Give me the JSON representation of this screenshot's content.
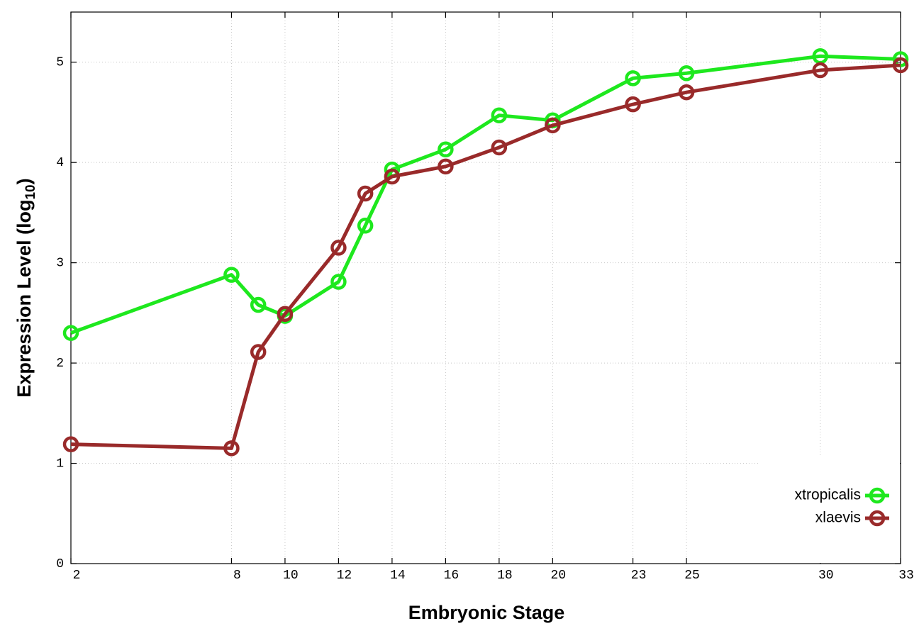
{
  "chart_data": {
    "type": "line",
    "x_label": "Embryonic Stage",
    "y_label": {
      "text": "Expression Level (log",
      "subscript": "10",
      "close": ")"
    },
    "xlim": [
      2,
      33
    ],
    "xticks": [
      2,
      8,
      10,
      12,
      14,
      16,
      18,
      20,
      23,
      25,
      30,
      33
    ],
    "ylim": [
      0,
      5.5
    ],
    "yticks": [
      0,
      1,
      2,
      3,
      4,
      5
    ],
    "grid": true,
    "legend": "lower right",
    "x": [
      2,
      8,
      9,
      10,
      12,
      13,
      14,
      16,
      18,
      20,
      23,
      25,
      30,
      33
    ],
    "series": [
      {
        "name": "xtropicalis",
        "color": "#1ee81e",
        "values": [
          2.3,
          2.88,
          2.58,
          2.47,
          2.81,
          3.37,
          3.93,
          4.13,
          4.47,
          4.42,
          4.84,
          4.89,
          5.06,
          5.03
        ]
      },
      {
        "name": "xlaevis",
        "color": "#992a2a",
        "values": [
          1.19,
          1.15,
          2.11,
          2.49,
          3.15,
          3.69,
          3.86,
          3.96,
          4.15,
          4.37,
          4.58,
          4.7,
          4.92,
          4.97
        ]
      }
    ]
  }
}
